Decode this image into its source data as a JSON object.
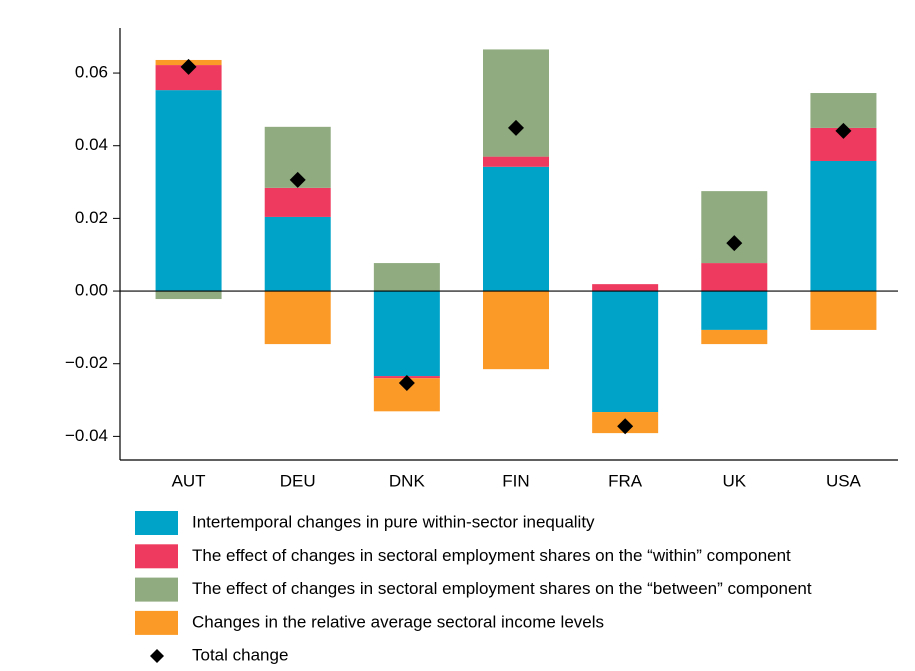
{
  "chart_data": {
    "type": "bar",
    "stacked": true,
    "categories": [
      "AUT",
      "DEU",
      "DNK",
      "FIN",
      "FRA",
      "UK",
      "USA"
    ],
    "series": [
      {
        "name": "Intertemporal changes in pure within-sector inequality",
        "color": "#00a3c8",
        "values": [
          0.0553,
          0.0204,
          -0.0234,
          0.0342,
          -0.0333,
          -0.0107,
          0.0358
        ]
      },
      {
        "name": "The effect of changes in sectoral employment shares on the “within” component",
        "color": "#ee3a5e",
        "values": [
          0.0069,
          0.008,
          -0.0006,
          0.0028,
          0.0019,
          0.0077,
          0.0091
        ]
      },
      {
        "name": "The effect of changes in sectoral employment shares on the “between” component",
        "color": "#8fab7f",
        "values": [
          -0.0022,
          0.0168,
          0.0077,
          0.0295,
          0,
          0.0198,
          0.0096
        ]
      },
      {
        "name": "Changes in the relative average sectoral income levels",
        "color": "#fb9a26",
        "values": [
          0.0014,
          -0.0146,
          -0.0091,
          -0.0215,
          -0.0058,
          -0.0039,
          -0.0107
        ]
      }
    ],
    "total": {
      "name": "Total change",
      "color": "#000000",
      "values": [
        0.0617,
        0.0306,
        -0.0253,
        0.0449,
        -0.0372,
        0.0132,
        0.0441
      ]
    },
    "ylim": [
      -0.0465,
      0.0724
    ],
    "yticks": [
      {
        "value": -0.04,
        "label": "−0.04"
      },
      {
        "value": -0.02,
        "label": "−0.02"
      },
      {
        "value": 0,
        "label": "0.00"
      },
      0.02,
      0.04,
      0.06
    ]
  }
}
